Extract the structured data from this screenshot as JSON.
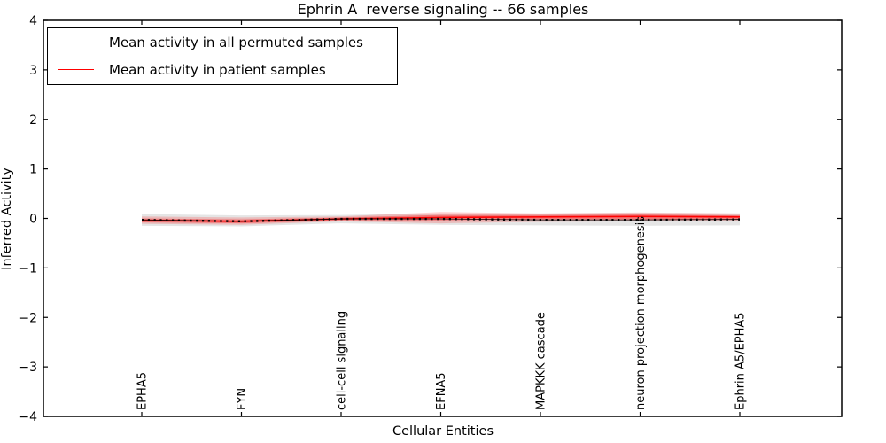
{
  "title": "Ephrin A  reverse signaling -- 66 samples",
  "xlabel": "Cellular Entities",
  "ylabel": "Inferred Activity",
  "legend": {
    "items": [
      {
        "label": "Mean activity in all permuted samples",
        "color": "#000000"
      },
      {
        "label": "Mean activity in patient samples",
        "color": "#ff0000"
      }
    ]
  },
  "colors": {
    "permuted_line": "#000000",
    "patient_line": "#ff0000",
    "permuted_band": "rgba(0,0,0,0.10)",
    "patient_band_outer": "rgba(255,0,0,0.18)",
    "patient_band_inner": "rgba(255,0,0,0.35)",
    "frame": "#000000"
  },
  "chart_data": {
    "type": "line",
    "title": "Ephrin A  reverse signaling -- 66 samples",
    "xlabel": "Cellular Entities",
    "ylabel": "Inferred Activity",
    "ylim": [
      -4,
      4
    ],
    "yticks": [
      -4,
      -3,
      -2,
      -1,
      0,
      1,
      2,
      3,
      4
    ],
    "grid": false,
    "legend_position": "upper left",
    "x_tick_label_rotation": 90,
    "categories": [
      "EPHA5",
      "FYN",
      "cell-cell signaling",
      "EFNA5",
      "MAPKKK cascade",
      "neuron projection morphogenesis",
      "Ephrin A5/EPHA5"
    ],
    "series": [
      {
        "name": "Mean activity in all permuted samples",
        "color": "#000000",
        "style": "dotted",
        "values": [
          -0.03,
          -0.06,
          -0.01,
          -0.01,
          -0.03,
          -0.03,
          -0.02
        ]
      },
      {
        "name": "Mean activity in patient samples",
        "color": "#ff0000",
        "style": "solid",
        "values": [
          -0.04,
          -0.06,
          -0.01,
          0.02,
          0.03,
          0.04,
          0.03
        ]
      }
    ],
    "bands": [
      {
        "name": "permuted-sample-range",
        "color": "rgba(0,0,0,0.10)",
        "upper": [
          0.09,
          0.06,
          0.07,
          0.1,
          0.1,
          0.11,
          0.1
        ],
        "lower": [
          -0.15,
          -0.16,
          -0.1,
          -0.13,
          -0.14,
          -0.15,
          -0.14
        ]
      },
      {
        "name": "patient-sample-range-outer",
        "color": "rgba(255,0,0,0.18)",
        "upper": [
          0.04,
          0.02,
          0.04,
          0.13,
          0.1,
          0.12,
          0.1
        ],
        "lower": [
          -0.11,
          -0.13,
          -0.06,
          -0.1,
          -0.07,
          -0.06,
          -0.06
        ]
      },
      {
        "name": "patient-sample-range-inner",
        "color": "rgba(255,0,0,0.35)",
        "upper": [
          0.0,
          -0.02,
          0.02,
          0.07,
          0.07,
          0.08,
          0.06
        ],
        "lower": [
          -0.08,
          -0.1,
          -0.04,
          -0.04,
          -0.02,
          -0.02,
          -0.02
        ]
      }
    ]
  }
}
